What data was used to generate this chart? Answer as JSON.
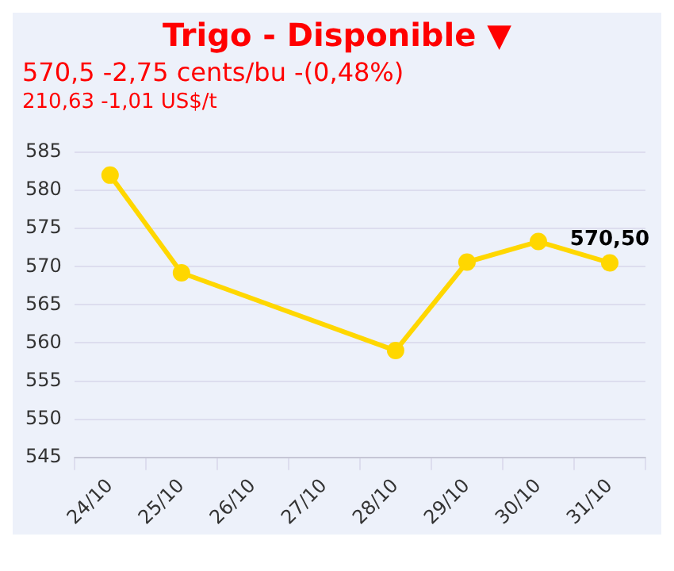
{
  "chart_data": {
    "type": "line",
    "title": "Trigo - Disponible ▼",
    "subtitle": "570,5 -2,75 cents/bu -(0,48%)",
    "annotations": [
      "210,63 -1,01 US$/t",
      {
        "text": "570,50",
        "x": "31/10",
        "y": 570.5
      }
    ],
    "categories": [
      "24/10",
      "25/10",
      "26/10",
      "27/10",
      "28/10",
      "29/10",
      "30/10",
      "31/10"
    ],
    "series": [
      {
        "color": "#ffd700",
        "values": [
          582,
          569.2,
          null,
          null,
          559,
          570.6,
          573.3,
          570.5
        ]
      }
    ],
    "ylim": [
      545,
      585
    ],
    "yticks": [
      545,
      550,
      555,
      560,
      565,
      570,
      575,
      580,
      585
    ],
    "grid": "y",
    "legend": false,
    "marker": "circle",
    "line_style": "solid"
  }
}
